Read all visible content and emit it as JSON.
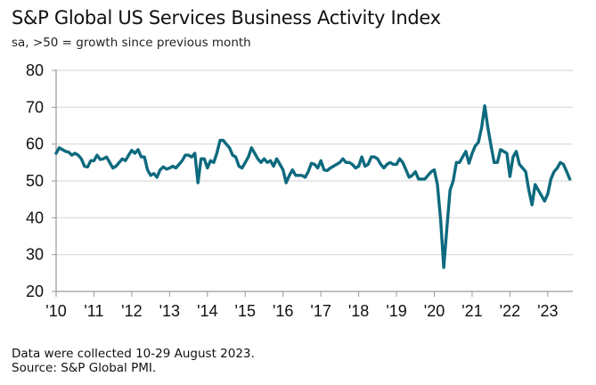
{
  "chart_data": {
    "type": "line",
    "title": "S&P Global US Services Business Activity Index",
    "subtitle": "sa, >50 = growth since previous month",
    "xlabel": "",
    "ylabel": "",
    "ylim": [
      20,
      80
    ],
    "yticks": [
      "20",
      "30",
      "40",
      "50",
      "60",
      "70",
      "80"
    ],
    "xticks": [
      "'10",
      "'11",
      "'12",
      "'13",
      "'14",
      "'15",
      "'16",
      "'17",
      "'18",
      "'19",
      "'20",
      "'21",
      "'22",
      "'23"
    ],
    "x_start": "2010-01",
    "x_frequency": "monthly",
    "grid": true,
    "legend": "none",
    "line_color": "#0e6a7e",
    "series": [
      {
        "name": "US Services Business Activity Index",
        "values": [
          57.5,
          59.0,
          58.5,
          58.0,
          57.8,
          57.0,
          57.5,
          57.0,
          56.0,
          54.0,
          53.8,
          55.5,
          55.5,
          57.0,
          55.8,
          56.0,
          56.5,
          55.0,
          53.5,
          54.0,
          55.0,
          56.0,
          55.5,
          57.0,
          58.3,
          57.5,
          58.5,
          56.5,
          56.5,
          53.0,
          51.5,
          52.0,
          51.0,
          53.0,
          53.8,
          53.2,
          53.5,
          54.0,
          53.5,
          54.5,
          55.5,
          57.0,
          57.0,
          56.5,
          57.5,
          49.5,
          56.0,
          56.0,
          53.5,
          55.5,
          55.0,
          57.5,
          61.0,
          61.0,
          60.0,
          59.0,
          57.0,
          56.5,
          54.0,
          53.5,
          55.0,
          56.5,
          59.0,
          57.5,
          56.0,
          55.0,
          56.0,
          55.0,
          55.5,
          54.0,
          56.0,
          54.5,
          53.0,
          49.5,
          51.5,
          53.0,
          51.5,
          51.5,
          51.5,
          51.0,
          52.5,
          54.8,
          54.5,
          53.5,
          55.5,
          53.0,
          52.8,
          53.5,
          54.0,
          54.5,
          55.0,
          56.0,
          55.0,
          55.0,
          54.5,
          53.5,
          54.0,
          56.5,
          54.0,
          54.5,
          56.5,
          56.5,
          56.0,
          54.5,
          53.5,
          54.5,
          55.0,
          54.5,
          54.5,
          56.0,
          55.0,
          53.0,
          51.0,
          51.5,
          52.5,
          50.5,
          50.5,
          50.5,
          51.5,
          52.5,
          53.0,
          49.0,
          39.5,
          26.5,
          37.5,
          47.5,
          50.0,
          55.0,
          55.0,
          56.5,
          58.0,
          54.8,
          57.5,
          59.5,
          60.5,
          64.5,
          70.4,
          64.5,
          59.5,
          55.0,
          55.0,
          58.5,
          58.0,
          57.5,
          51.2,
          56.5,
          58.0,
          54.5,
          53.5,
          52.5,
          47.5,
          43.5,
          49.0,
          47.5,
          46.0,
          44.5,
          46.5,
          50.5,
          52.5,
          53.5,
          55.0,
          54.5,
          52.5,
          50.5
        ]
      }
    ]
  },
  "footer": {
    "collection_note": "Data were collected 10-29 August 2023.",
    "source": "Source: S&P Global PMI."
  }
}
